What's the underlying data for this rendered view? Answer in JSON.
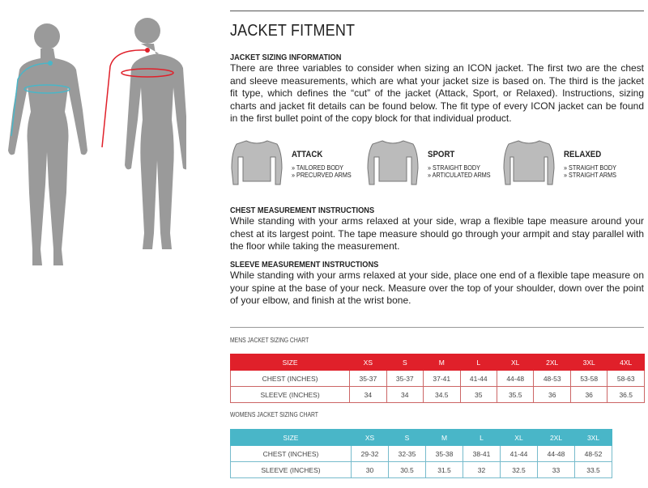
{
  "title": "JACKET FITMENT",
  "sizing": {
    "heading": "JACKET SIZING INFORMATION",
    "text": "There are three variables to consider when sizing an ICON jacket. The first two are the chest and sleeve measurements, which are what your jacket size is based on. The third is the jacket fit type, which defines the “cut” of the jacket (Attack, Sport, or Relaxed). Instructions, sizing charts and jacket fit details can be found below. The fit type of every ICON jacket can be found in the first bullet point of the copy block for that individual product."
  },
  "fits": [
    {
      "name": "ATTACK",
      "bullets": [
        "» TAILORED BODY",
        "» PRECURVED ARMS"
      ]
    },
    {
      "name": "SPORT",
      "bullets": [
        "» STRAIGHT BODY",
        "» ARTICULATED ARMS"
      ]
    },
    {
      "name": "RELAXED",
      "bullets": [
        "» STRAIGHT BODY",
        "» STRAIGHT ARMS"
      ]
    }
  ],
  "chest": {
    "heading": "CHEST MEASUREMENT INSTRUCTIONS",
    "text": "While standing with your arms relaxed at your side, wrap a flexible tape measure around your chest at its largest point. The tape measure should go through your armpit and stay parallel with the floor while taking the measurement."
  },
  "sleeve": {
    "heading": "SLEEVE MEASUREMENT INSTRUCTIONS",
    "text": "While standing with your arms relaxed at your side, place one end of a flexible tape measure on your spine at the base of your neck. Measure over the top of your shoulder, down over the point of your elbow, and finish at the wrist bone."
  },
  "mens": {
    "title": "MENS JACKET SIZING CHART",
    "color": "#e0202a",
    "rows": [
      [
        "SIZE",
        "XS",
        "S",
        "M",
        "L",
        "XL",
        "2XL",
        "3XL",
        "4XL"
      ],
      [
        "CHEST (INCHES)",
        "35-37",
        "35-37",
        "37-41",
        "41-44",
        "44-48",
        "48-53",
        "53-58",
        "58-63"
      ],
      [
        "SLEEVE (INCHES)",
        "34",
        "34",
        "34.5",
        "35",
        "35.5",
        "36",
        "36",
        "36.5"
      ]
    ]
  },
  "womens": {
    "title": "WOMENS JACKET SIZING CHART",
    "color": "#49b6c8",
    "rows": [
      [
        "SIZE",
        "XS",
        "S",
        "M",
        "L",
        "XL",
        "2XL",
        "3XL"
      ],
      [
        "CHEST (INCHES)",
        "29-32",
        "32-35",
        "35-38",
        "38-41",
        "41-44",
        "44-48",
        "48-52"
      ],
      [
        "SLEEVE (INCHES)",
        "30",
        "30.5",
        "31.5",
        "32",
        "32.5",
        "33",
        "33.5"
      ]
    ]
  }
}
